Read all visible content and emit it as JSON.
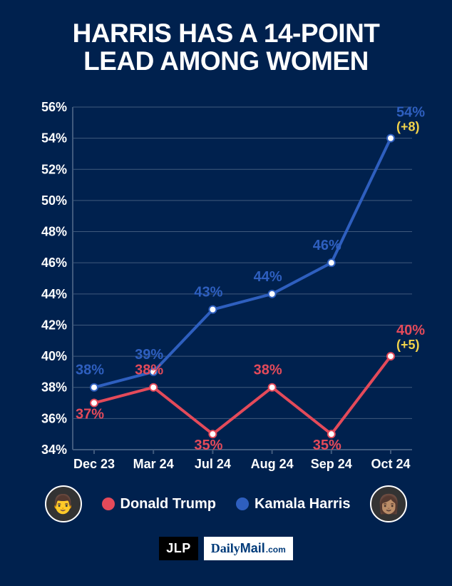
{
  "title_line1": "HARRIS HAS A 14-POINT",
  "title_line2": "LEAD AMONG WOMEN",
  "chart": {
    "type": "line",
    "background_color": "#00214e",
    "grid_color": "#405a7d",
    "axis_color": "#405a7d",
    "tick_label_color": "#ffffff",
    "tick_fontsize": 18,
    "x_categories": [
      "Dec 23",
      "Mar 24",
      "Jul 24",
      "Aug 24",
      "Sep 24",
      "Oct 24"
    ],
    "y_min": 34,
    "y_max": 56,
    "y_step": 2,
    "y_suffix": "%",
    "line_width": 4,
    "marker_radius": 5,
    "marker_fill": "#ffffff",
    "series": [
      {
        "name": "Kamala Harris",
        "color": "#2e5fbf",
        "values": [
          38,
          39,
          43,
          44,
          46,
          54
        ],
        "point_labels": [
          "38%",
          "39%",
          "43%",
          "44%",
          "46%",
          "54%"
        ],
        "label_dy": [
          -18,
          -18,
          -18,
          -18,
          -18,
          -30
        ],
        "label_dx": [
          -6,
          -6,
          -6,
          -6,
          -6,
          8
        ],
        "end_delta": "(+8)",
        "end_delta_color": "#f2d34b"
      },
      {
        "name": "Donald Trump",
        "color": "#e44a5a",
        "values": [
          37,
          38,
          35,
          38,
          35,
          40
        ],
        "point_labels": [
          "37%",
          "38%",
          "35%",
          "38%",
          "35%",
          "40%"
        ],
        "label_dy": [
          22,
          -18,
          22,
          -18,
          22,
          -30
        ],
        "label_dx": [
          -6,
          -6,
          -6,
          -6,
          -6,
          8
        ],
        "end_delta": "(+5)",
        "end_delta_color": "#f2d34b"
      }
    ]
  },
  "legend": {
    "trump": {
      "label": "Donald Trump",
      "color": "#e44a5a",
      "avatar_emoji": "👨"
    },
    "harris": {
      "label": "Kamala Harris",
      "color": "#2e5fbf",
      "avatar_emoji": "👩🏽"
    }
  },
  "footer": {
    "jlp": "JLP",
    "dailymail_1": "Daily",
    "dailymail_2": "Mail",
    "dailymail_3": ".com"
  }
}
